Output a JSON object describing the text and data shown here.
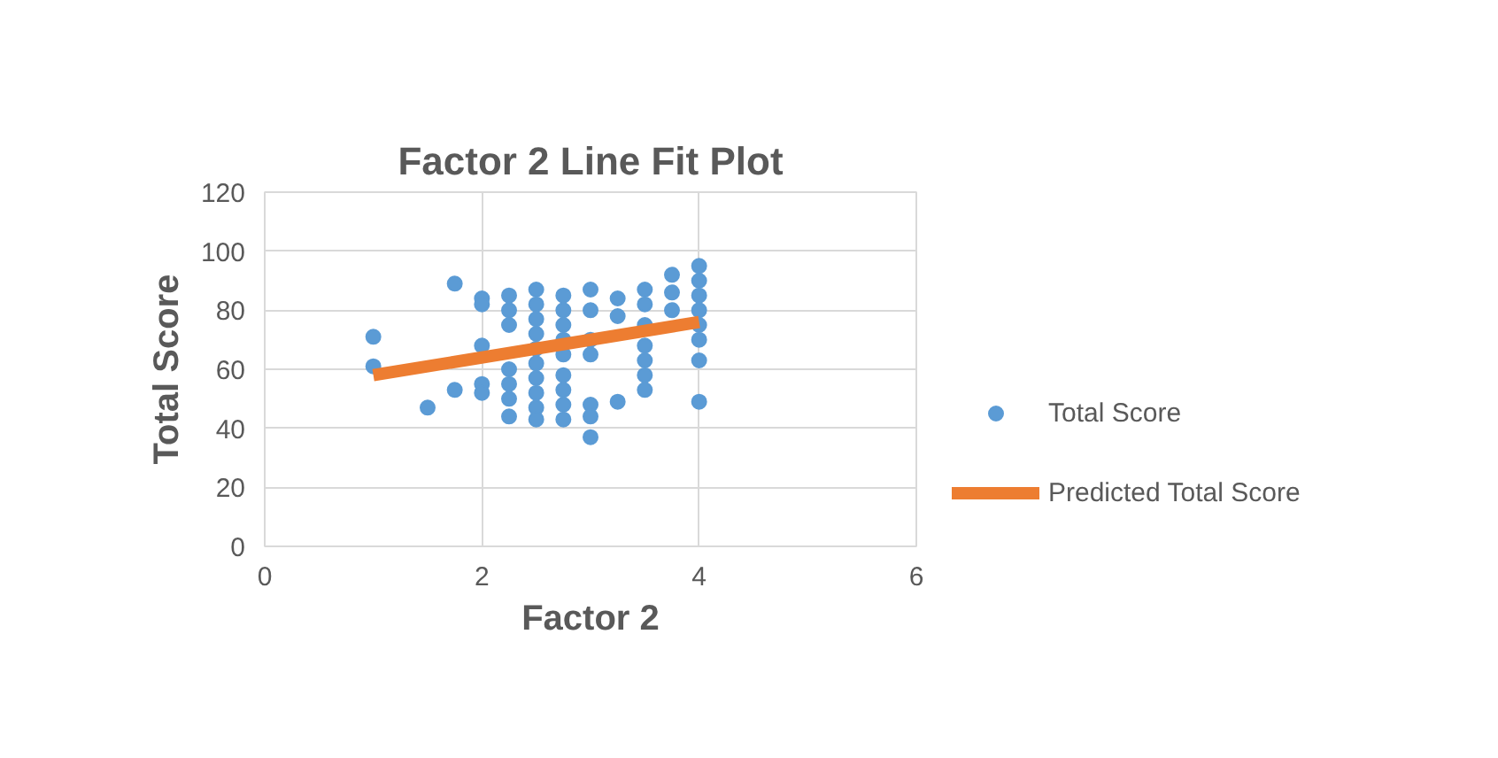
{
  "chart_data": {
    "type": "scatter",
    "title": "Factor 2 Line Fit Plot",
    "xlabel": "Factor 2",
    "ylabel": "Total Score",
    "xlim": [
      0,
      6
    ],
    "xticks": [
      0,
      2,
      4,
      6
    ],
    "ylim": [
      0,
      120
    ],
    "yticks": [
      0,
      20,
      40,
      60,
      80,
      100,
      120
    ],
    "grid": true,
    "legend": "right",
    "series": [
      {
        "name": "Total Score",
        "color": "#5b9bd5",
        "x": [
          1,
          1,
          1.5,
          1.75,
          1.75,
          2,
          2,
          2,
          2,
          2,
          2.25,
          2.25,
          2.25,
          2.25,
          2.25,
          2.25,
          2.25,
          2.5,
          2.5,
          2.5,
          2.5,
          2.5,
          2.5,
          2.5,
          2.5,
          2.5,
          2.5,
          2.75,
          2.75,
          2.75,
          2.75,
          2.75,
          2.75,
          2.75,
          2.75,
          2.75,
          3,
          3,
          3,
          3,
          3,
          3,
          3,
          3.25,
          3.25,
          3.25,
          3.5,
          3.5,
          3.5,
          3.5,
          3.5,
          3.5,
          3.5,
          3.75,
          3.75,
          3.75,
          4,
          4,
          4,
          4,
          4,
          4,
          4,
          4
        ],
        "values": [
          71,
          61,
          47,
          89,
          53,
          84,
          82,
          68,
          55,
          52,
          85,
          80,
          75,
          60,
          55,
          50,
          44,
          87,
          82,
          77,
          72,
          67,
          62,
          57,
          52,
          47,
          43,
          85,
          80,
          75,
          70,
          65,
          58,
          53,
          48,
          43,
          87,
          80,
          70,
          65,
          48,
          44,
          37,
          84,
          78,
          49,
          87,
          82,
          75,
          68,
          63,
          58,
          53,
          92,
          86,
          80,
          95,
          90,
          85,
          80,
          75,
          70,
          63,
          49
        ]
      },
      {
        "name": "Predicted Total Score",
        "type": "line",
        "color": "#ed7d31",
        "x": [
          1,
          4
        ],
        "values": [
          58,
          76
        ]
      }
    ]
  }
}
